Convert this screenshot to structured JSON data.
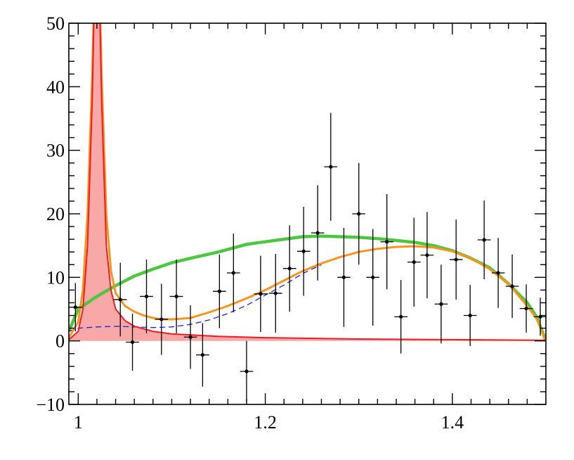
{
  "chart_data": {
    "type": "scatter",
    "title": "",
    "xlabel": "",
    "ylabel": "",
    "xlim": [
      0.99,
      1.5
    ],
    "ylim": [
      -10,
      50
    ],
    "x_ticks": [
      {
        "value": 1.0,
        "label": "1"
      },
      {
        "value": 1.2,
        "label": "1.2"
      },
      {
        "value": 1.4,
        "label": "1.4"
      }
    ],
    "y_ticks": [
      {
        "value": -10,
        "label": "−10"
      },
      {
        "value": 0,
        "label": "0"
      },
      {
        "value": 10,
        "label": "10"
      },
      {
        "value": 20,
        "label": "20"
      },
      {
        "value": 30,
        "label": "30"
      },
      {
        "value": 40,
        "label": "40"
      },
      {
        "value": 50,
        "label": "50"
      }
    ],
    "grid": false,
    "colors": {
      "green": "#4cc73f",
      "orange": "#f7941d",
      "red": "#ee1c25",
      "red_fill": "#f9a8a8",
      "blue_dashed": "#1a22d6",
      "points": "#000000"
    },
    "points": [
      {
        "x": 0.997,
        "y": 5.3,
        "yerr": 3.8,
        "xerr": 0.007
      },
      {
        "x": 1.045,
        "y": 6.5,
        "yerr": 5.8,
        "xerr": 0.007
      },
      {
        "x": 1.058,
        "y": -0.2,
        "yerr": 4.5,
        "xerr": 0.007
      },
      {
        "x": 1.073,
        "y": 7.0,
        "yerr": 5.8,
        "xerr": 0.007
      },
      {
        "x": 1.089,
        "y": 3.4,
        "yerr": 5.6,
        "xerr": 0.007
      },
      {
        "x": 1.105,
        "y": 7.0,
        "yerr": 5.8,
        "xerr": 0.007
      },
      {
        "x": 1.12,
        "y": 0.6,
        "yerr": 5.0,
        "xerr": 0.007
      },
      {
        "x": 1.133,
        "y": -2.2,
        "yerr": 5.0,
        "xerr": 0.007
      },
      {
        "x": 1.151,
        "y": 7.8,
        "yerr": 5.8,
        "xerr": 0.007
      },
      {
        "x": 1.166,
        "y": 10.7,
        "yerr": 6.2,
        "xerr": 0.007
      },
      {
        "x": 1.18,
        "y": -4.8,
        "yerr": 4.8,
        "xerr": 0.007
      },
      {
        "x": 1.195,
        "y": 7.4,
        "yerr": 6.0,
        "xerr": 0.007
      },
      {
        "x": 1.211,
        "y": 7.5,
        "yerr": 6.2,
        "xerr": 0.007
      },
      {
        "x": 1.226,
        "y": 11.4,
        "yerr": 6.8,
        "xerr": 0.007
      },
      {
        "x": 1.241,
        "y": 14.1,
        "yerr": 7.0,
        "xerr": 0.007
      },
      {
        "x": 1.256,
        "y": 17.0,
        "yerr": 7.5,
        "xerr": 0.007
      },
      {
        "x": 1.27,
        "y": 27.4,
        "yerr": 8.5,
        "xerr": 0.007
      },
      {
        "x": 1.284,
        "y": 10.0,
        "yerr": 7.8,
        "xerr": 0.007
      },
      {
        "x": 1.3,
        "y": 20.0,
        "yerr": 8.0,
        "xerr": 0.007
      },
      {
        "x": 1.315,
        "y": 10.0,
        "yerr": 7.6,
        "xerr": 0.007
      },
      {
        "x": 1.33,
        "y": 15.6,
        "yerr": 7.5,
        "xerr": 0.007
      },
      {
        "x": 1.345,
        "y": 3.8,
        "yerr": 5.8,
        "xerr": 0.007
      },
      {
        "x": 1.359,
        "y": 12.4,
        "yerr": 7.0,
        "xerr": 0.007
      },
      {
        "x": 1.373,
        "y": 13.5,
        "yerr": 6.8,
        "xerr": 0.007
      },
      {
        "x": 1.388,
        "y": 5.8,
        "yerr": 6.2,
        "xerr": 0.007
      },
      {
        "x": 1.404,
        "y": 12.8,
        "yerr": 6.3,
        "xerr": 0.007
      },
      {
        "x": 1.419,
        "y": 4.0,
        "yerr": 4.8,
        "xerr": 0.007
      },
      {
        "x": 1.434,
        "y": 15.9,
        "yerr": 6.2,
        "xerr": 0.007
      },
      {
        "x": 1.449,
        "y": 10.7,
        "yerr": 5.5,
        "xerr": 0.007
      },
      {
        "x": 1.464,
        "y": 8.6,
        "yerr": 5.0,
        "xerr": 0.007
      },
      {
        "x": 1.479,
        "y": 5.1,
        "yerr": 3.8,
        "xerr": 0.007
      },
      {
        "x": 1.494,
        "y": 3.8,
        "yerr": 3.0,
        "xerr": 0.007
      }
    ],
    "curves": {
      "green": [
        [
          0.99,
          1.5
        ],
        [
          1.0,
          5.0
        ],
        [
          1.02,
          7.0
        ],
        [
          1.04,
          8.7
        ],
        [
          1.06,
          10.2
        ],
        [
          1.08,
          11.3
        ],
        [
          1.1,
          12.3
        ],
        [
          1.12,
          13.0
        ],
        [
          1.15,
          14.0
        ],
        [
          1.18,
          15.2
        ],
        [
          1.2,
          15.6
        ],
        [
          1.22,
          16.0
        ],
        [
          1.24,
          16.4
        ],
        [
          1.26,
          16.5
        ],
        [
          1.28,
          16.4
        ],
        [
          1.3,
          16.3
        ],
        [
          1.32,
          16.1
        ],
        [
          1.34,
          15.8
        ],
        [
          1.36,
          15.5
        ],
        [
          1.38,
          15.0
        ],
        [
          1.4,
          14.2
        ],
        [
          1.42,
          13.0
        ],
        [
          1.44,
          11.5
        ],
        [
          1.46,
          9.0
        ],
        [
          1.48,
          6.0
        ],
        [
          1.49,
          3.8
        ],
        [
          1.5,
          0.0
        ]
      ],
      "orange": [
        [
          0.99,
          0.5
        ],
        [
          1.0,
          3.0
        ],
        [
          1.005,
          8.0
        ],
        [
          1.01,
          20.0
        ],
        [
          1.015,
          42.0
        ],
        [
          1.018,
          60.0
        ],
        [
          1.022,
          60.0
        ],
        [
          1.025,
          42.0
        ],
        [
          1.03,
          20.0
        ],
        [
          1.035,
          11.0
        ],
        [
          1.04,
          7.5
        ],
        [
          1.05,
          5.5
        ],
        [
          1.06,
          4.6
        ],
        [
          1.07,
          4.0
        ],
        [
          1.08,
          3.6
        ],
        [
          1.09,
          3.4
        ],
        [
          1.1,
          3.4
        ],
        [
          1.12,
          3.6
        ],
        [
          1.14,
          4.5
        ],
        [
          1.16,
          5.5
        ],
        [
          1.18,
          6.7
        ],
        [
          1.2,
          8.0
        ],
        [
          1.22,
          9.5
        ],
        [
          1.24,
          11.0
        ],
        [
          1.26,
          12.2
        ],
        [
          1.28,
          13.2
        ],
        [
          1.3,
          14.0
        ],
        [
          1.32,
          14.5
        ],
        [
          1.34,
          14.8
        ],
        [
          1.36,
          14.9
        ],
        [
          1.38,
          14.7
        ],
        [
          1.4,
          14.1
        ],
        [
          1.42,
          13.0
        ],
        [
          1.44,
          11.3
        ],
        [
          1.46,
          9.0
        ],
        [
          1.48,
          5.5
        ],
        [
          1.49,
          3.5
        ],
        [
          1.5,
          0.0
        ]
      ],
      "red": [
        [
          0.99,
          0.2
        ],
        [
          1.0,
          1.5
        ],
        [
          1.005,
          5.0
        ],
        [
          1.01,
          15.0
        ],
        [
          1.015,
          38.0
        ],
        [
          1.018,
          60.0
        ],
        [
          1.022,
          60.0
        ],
        [
          1.025,
          38.0
        ],
        [
          1.03,
          15.0
        ],
        [
          1.035,
          8.0
        ],
        [
          1.04,
          5.0
        ],
        [
          1.05,
          3.2
        ],
        [
          1.06,
          2.3
        ],
        [
          1.08,
          1.5
        ],
        [
          1.1,
          1.1
        ],
        [
          1.15,
          0.7
        ],
        [
          1.2,
          0.5
        ],
        [
          1.3,
          0.3
        ],
        [
          1.4,
          0.2
        ],
        [
          1.5,
          0.1
        ]
      ],
      "blue_dashed": [
        [
          0.99,
          1.5
        ],
        [
          1.0,
          2.0
        ],
        [
          1.02,
          2.2
        ],
        [
          1.04,
          2.3
        ],
        [
          1.06,
          2.2
        ],
        [
          1.08,
          2.1
        ],
        [
          1.1,
          2.2
        ],
        [
          1.12,
          2.6
        ],
        [
          1.14,
          3.3
        ],
        [
          1.16,
          4.3
        ],
        [
          1.18,
          5.6
        ],
        [
          1.2,
          7.2
        ],
        [
          1.22,
          8.8
        ],
        [
          1.24,
          10.6
        ],
        [
          1.26,
          12.0
        ]
      ]
    }
  }
}
